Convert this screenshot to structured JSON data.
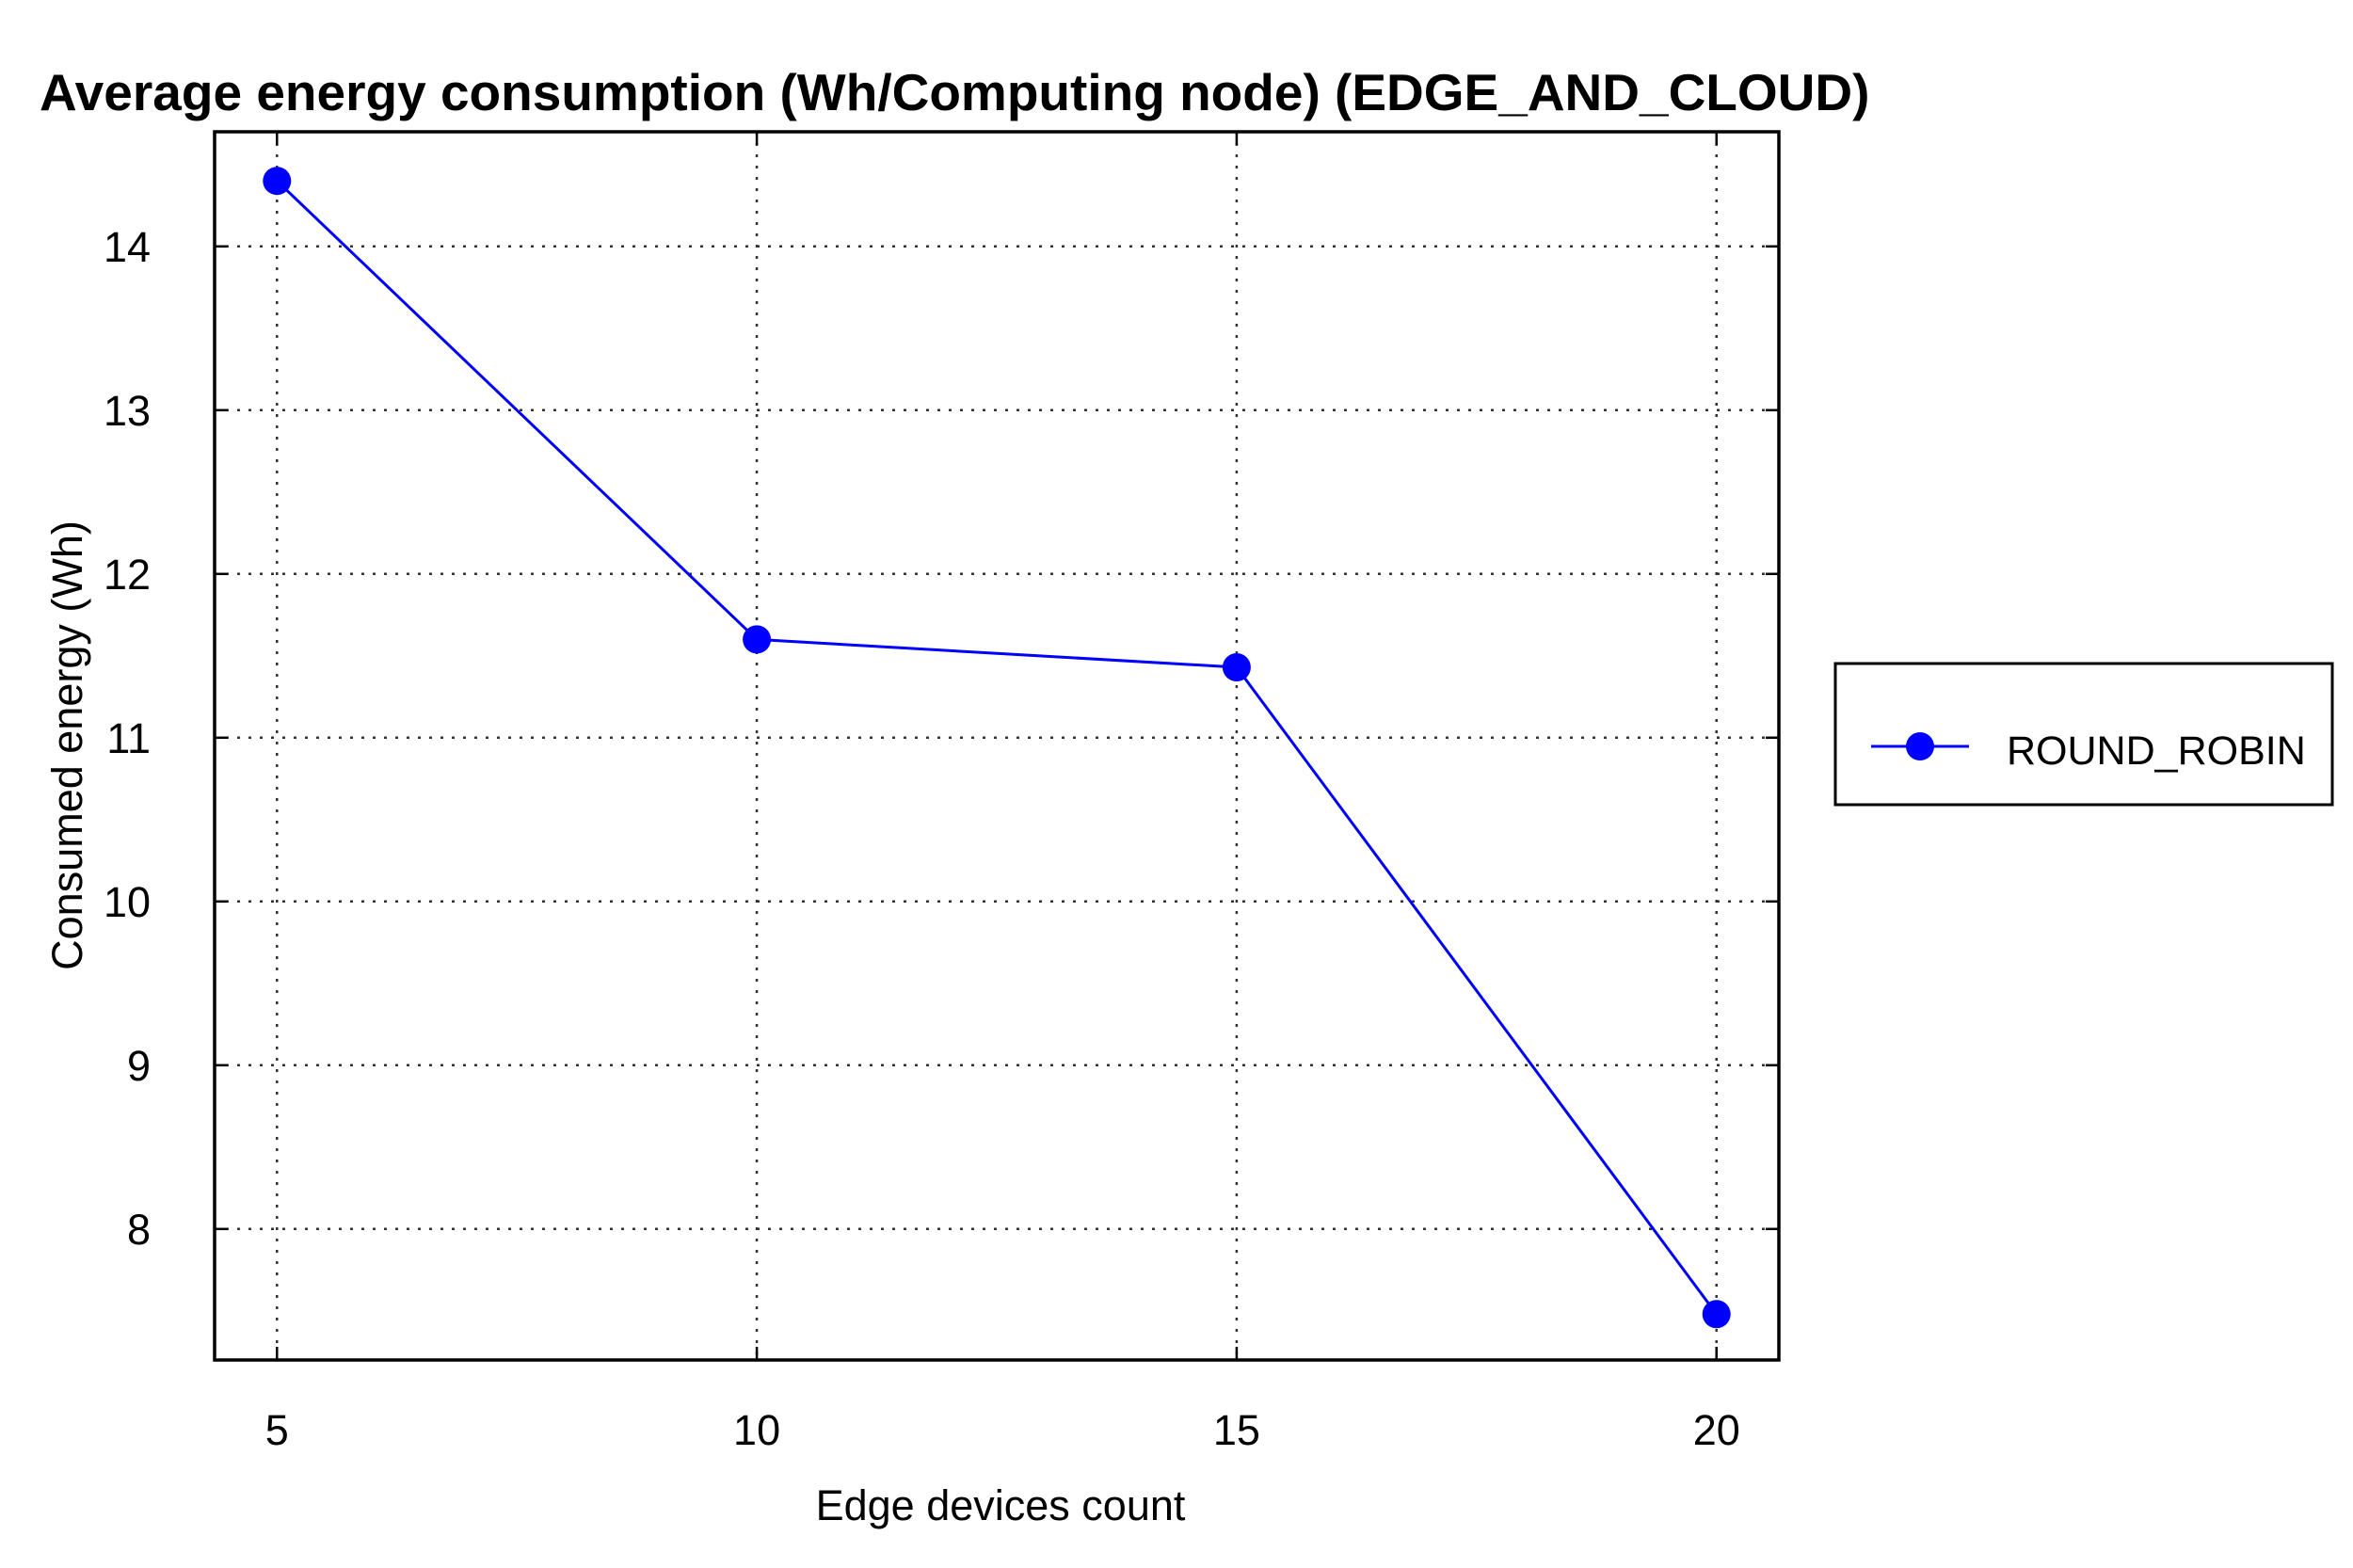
{
  "chart_data": {
    "type": "line",
    "title": "Average energy consumption (Wh/Computing node) (EDGE_AND_CLOUD)",
    "xlabel": "Edge devices count",
    "ylabel": "Consumed energy (Wh)",
    "x": [
      5,
      10,
      15,
      20
    ],
    "series": [
      {
        "name": "ROUND_ROBIN",
        "values": [
          14.4,
          11.6,
          11.43,
          7.48
        ],
        "color": "#0000ff",
        "marker": "circle"
      }
    ],
    "xticks": [
      5,
      10,
      15,
      20
    ],
    "yticks": [
      8,
      9,
      10,
      11,
      12,
      13,
      14
    ],
    "xlim": [
      4.35,
      20.65
    ],
    "ylim": [
      7.2,
      14.7
    ],
    "grid": true,
    "legend_position": "outside-right"
  }
}
